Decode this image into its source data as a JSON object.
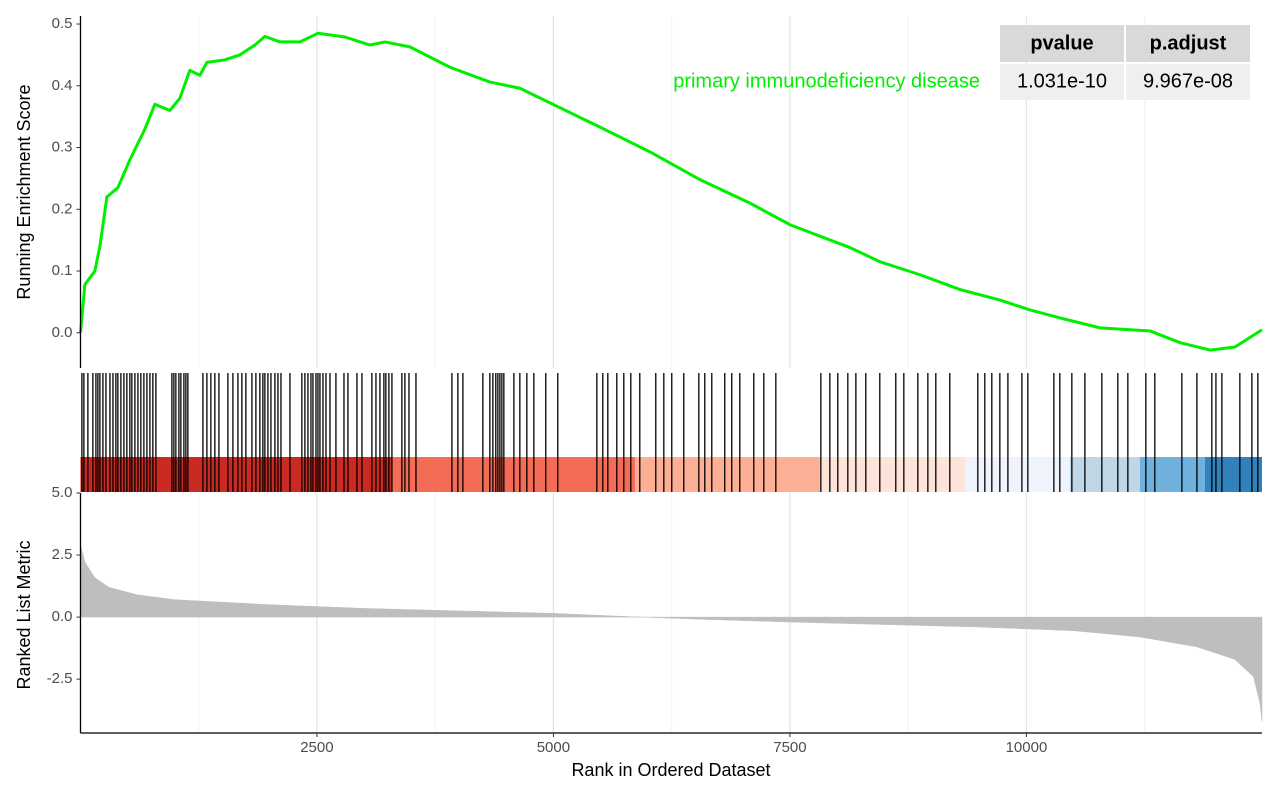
{
  "chart_data": {
    "type": "gsea",
    "xlabel": "Rank in Ordered Dataset",
    "xlim": [
      1,
      12490
    ],
    "xticks": [
      2500,
      5000,
      7500,
      10000
    ],
    "xminor": [
      1250,
      3750,
      6250,
      8750,
      11250
    ],
    "grid": true,
    "es": {
      "ylabel": "Running Enrichment Score",
      "ylim": [
        -0.057,
        0.513
      ],
      "yticks": [
        {
          "value": 0,
          "label": "0.0"
        },
        0.1,
        0.2,
        0.3,
        0.4,
        0.5
      ],
      "series": [
        {
          "name": "primary immunodeficiency disease",
          "color": "#00ee00",
          "x": [
            1,
            47,
            153,
            206,
            280,
            396,
            523,
            682,
            787,
            946,
            1052,
            1157,
            1263,
            1337,
            1527,
            1686,
            1845,
            1950,
            2109,
            2320,
            2510,
            2796,
            3060,
            3219,
            3483,
            3906,
            4329,
            4646,
            4995,
            5492,
            6020,
            6549,
            7078,
            7500,
            8134,
            8452,
            8875,
            9298,
            9721,
            10038,
            10355,
            10778,
            11307,
            11624,
            11941,
            12205,
            12490
          ],
          "values": [
            0.0,
            0.078,
            0.1,
            0.14,
            0.22,
            0.235,
            0.28,
            0.33,
            0.37,
            0.36,
            0.38,
            0.425,
            0.417,
            0.438,
            0.442,
            0.45,
            0.466,
            0.48,
            0.471,
            0.471,
            0.485,
            0.479,
            0.466,
            0.471,
            0.463,
            0.43,
            0.406,
            0.396,
            0.37,
            0.333,
            0.293,
            0.248,
            0.21,
            0.175,
            0.138,
            0.115,
            0.094,
            0.07,
            0.053,
            0.037,
            0.024,
            0.008,
            0.003,
            -0.016,
            -0.028,
            -0.023,
            0.005
          ]
        }
      ]
    },
    "hits": [
      16,
      37,
      79,
      132,
      164,
      185,
      206,
      238,
      270,
      312,
      344,
      375,
      396,
      428,
      460,
      491,
      523,
      544,
      576,
      608,
      639,
      671,
      703,
      735,
      766,
      798,
      967,
      988,
      1009,
      1041,
      1062,
      1094,
      1115,
      1136,
      1295,
      1337,
      1379,
      1421,
      1464,
      1559,
      1612,
      1665,
      1707,
      1749,
      1813,
      1855,
      1897,
      1929,
      1950,
      1982,
      2014,
      2056,
      2088,
      2120,
      2215,
      2341,
      2373,
      2405,
      2437,
      2458,
      2490,
      2511,
      2532,
      2564,
      2596,
      2638,
      2701,
      2786,
      2828,
      2923,
      2976,
      3081,
      3124,
      3166,
      3208,
      3229,
      3261,
      3293,
      3398,
      3430,
      3473,
      3547,
      3927,
      3990,
      4043,
      4254,
      4328,
      4360,
      4391,
      4413,
      4434,
      4455,
      4476,
      4582,
      4645,
      4719,
      4793,
      4919,
      5046,
      5459,
      5522,
      5575,
      5670,
      5744,
      5818,
      5913,
      6082,
      6167,
      6251,
      6378,
      6537,
      6600,
      6674,
      6811,
      6885,
      6970,
      7118,
      7224,
      7351,
      7827,
      7922,
      8006,
      8112,
      8197,
      8302,
      8450,
      8619,
      8704,
      8852,
      8958,
      9042,
      9190,
      9486,
      9560,
      9634,
      9719,
      9804,
      9952,
      10015,
      10290,
      10353,
      10480,
      10618,
      10797,
      10966,
      11072,
      11262,
      11357,
      11643,
      11802,
      11960,
      12003,
      12066,
      12256,
      12383,
      12446
    ],
    "color_bins": {
      "edges": [
        1,
        3293,
        5862,
        7817,
        9350,
        10460,
        11200,
        11887,
        12490
      ],
      "colors": [
        "#cb2a22",
        "#f46c55",
        "#fcaf94",
        "#fde3d8",
        "#eef3fc",
        "#bed6e6",
        "#6fb0dc",
        "#3181bd"
      ]
    },
    "metric": {
      "ylabel": "Ranked List Metric",
      "ylim": [
        -4.67,
        5.0
      ],
      "yticks": [
        -2.5,
        {
          "value": 0,
          "label": "0.0"
        },
        2.5,
        {
          "value": 5,
          "label": "5.0"
        }
      ],
      "color": "#bebebe",
      "x": [
        1,
        50,
        150,
        300,
        600,
        1000,
        2000,
        3000,
        4000,
        5000,
        5800,
        6500,
        7500,
        8500,
        9500,
        10500,
        11200,
        11800,
        12200,
        12400,
        12470,
        12490
      ],
      "values": [
        2.9,
        2.2,
        1.6,
        1.2,
        0.9,
        0.7,
        0.5,
        0.35,
        0.25,
        0.15,
        0.02,
        -0.08,
        -0.2,
        -0.3,
        -0.4,
        -0.55,
        -0.8,
        -1.2,
        -1.7,
        -2.4,
        -3.5,
        -4.2
      ]
    },
    "table": {
      "columns": [
        "pvalue",
        "p.adjust"
      ],
      "rows": [
        [
          "1.031e-10",
          "9.967e-08"
        ]
      ]
    }
  }
}
